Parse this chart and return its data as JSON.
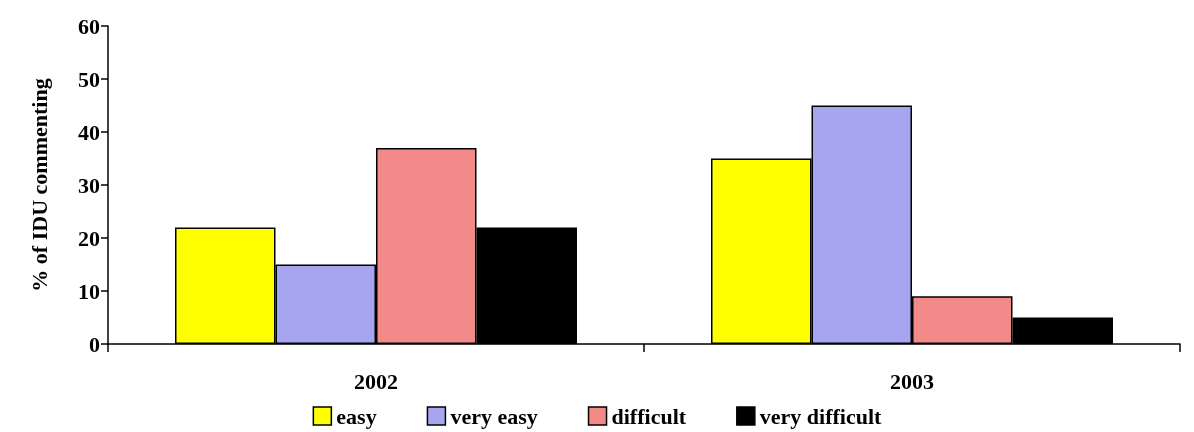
{
  "chart_data": {
    "type": "bar",
    "ylabel": "% of IDU commenting",
    "categories": [
      "2002",
      "2003"
    ],
    "series": [
      {
        "name": "easy",
        "color": "#ffff00",
        "values": [
          22,
          35
        ]
      },
      {
        "name": "very easy",
        "color": "#a6a6f0",
        "values": [
          15,
          45
        ]
      },
      {
        "name": "difficult",
        "color": "#f28a8a",
        "values": [
          37,
          9
        ]
      },
      {
        "name": "very difficult",
        "color": "#000000",
        "values": [
          22,
          5
        ]
      }
    ],
    "ylim": [
      0,
      60
    ],
    "yticks": [
      0,
      10,
      20,
      30,
      40,
      50,
      60
    ],
    "grid": false,
    "legend": "bottom"
  }
}
